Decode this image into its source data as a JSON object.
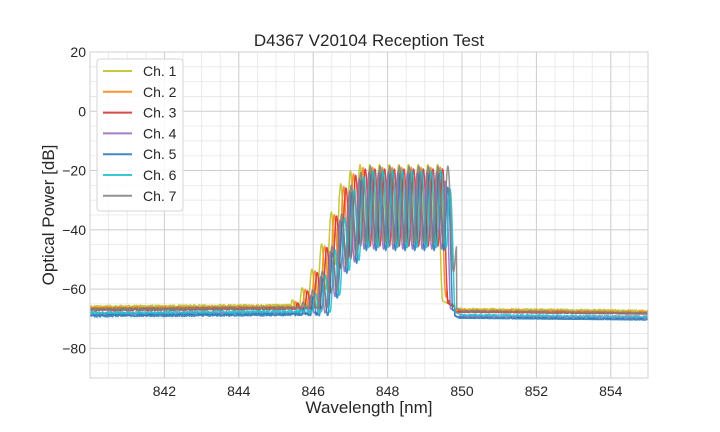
{
  "chart_data": {
    "type": "line",
    "title": "D4367 V20104 Reception Test",
    "xlabel": "Wavelength [nm]",
    "ylabel": "Optical Power [dB]",
    "xlim": [
      840,
      855
    ],
    "ylim": [
      -90,
      20
    ],
    "xticks": [
      842,
      844,
      846,
      848,
      850,
      852,
      854
    ],
    "xtick_labels": [
      "842",
      "844",
      "846",
      "848",
      "850",
      "852",
      "854"
    ],
    "yticks": [
      -80,
      -60,
      -40,
      -20,
      0,
      20
    ],
    "ytick_labels": [
      "−80",
      "−60",
      "−40",
      "−20",
      "0",
      "20"
    ],
    "x_minor_step": 0.5,
    "y_minor_step": 5,
    "grid": true,
    "legend_position": "top-left",
    "series": [
      {
        "name": "Ch. 1",
        "color": "#bcbd22",
        "baseline_db": -66.0,
        "shift_nm": -0.2,
        "peak_db": -16.5,
        "edge_nm": 849.35
      },
      {
        "name": "Ch. 2",
        "color": "#ff7f0e",
        "baseline_db": -66.5,
        "shift_nm": -0.12,
        "peak_db": -17.5,
        "edge_nm": 849.45
      },
      {
        "name": "Ch. 3",
        "color": "#d62728",
        "baseline_db": -67.0,
        "shift_nm": -0.06,
        "peak_db": -18.0,
        "edge_nm": 849.5
      },
      {
        "name": "Ch. 4",
        "color": "#9467bd",
        "baseline_db": -68.5,
        "shift_nm": 0.04,
        "peak_db": -19.0,
        "edge_nm": 849.55
      },
      {
        "name": "Ch. 5",
        "color": "#1f77b4",
        "baseline_db": -69.0,
        "shift_nm": 0.1,
        "peak_db": -19.5,
        "edge_nm": 849.6
      },
      {
        "name": "Ch. 6",
        "color": "#17becf",
        "baseline_db": -68.0,
        "shift_nm": 0.16,
        "peak_db": -18.5,
        "edge_nm": 849.65
      },
      {
        "name": "Ch. 7",
        "color": "#7f7f7f",
        "baseline_db": -66.8,
        "shift_nm": 0.08,
        "peak_db": -17.0,
        "edge_nm": 849.7
      }
    ]
  }
}
